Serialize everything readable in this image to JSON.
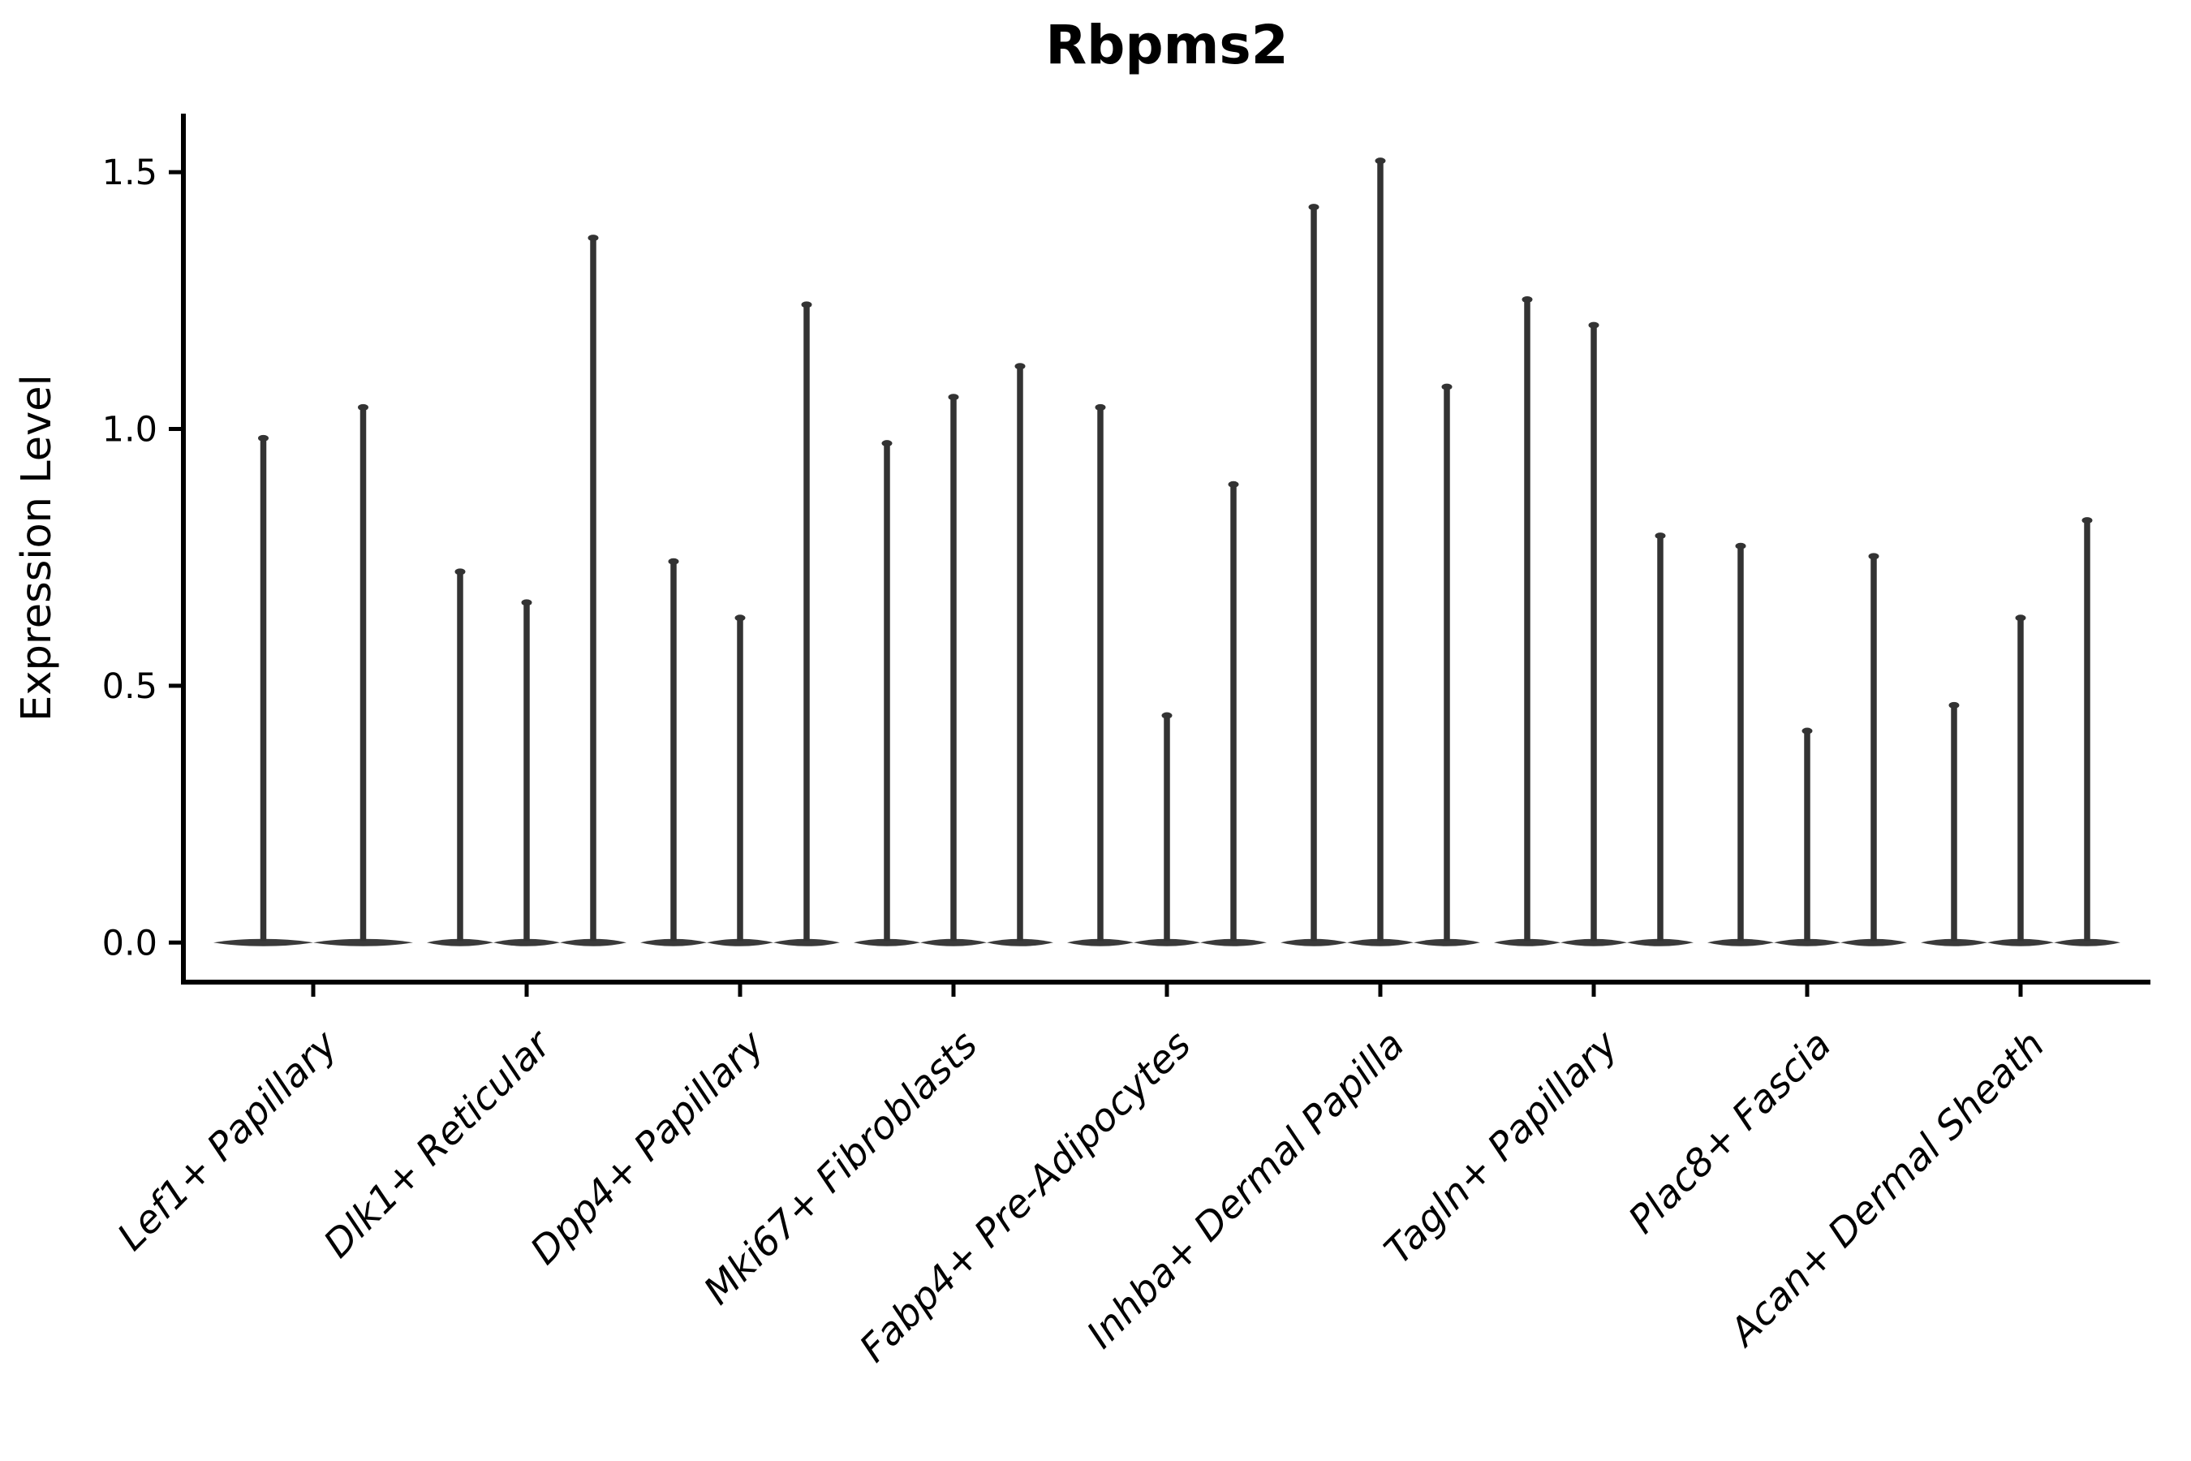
{
  "chart_data": {
    "type": "violin",
    "title": "Rbpms2",
    "xlabel": "",
    "ylabel": "Expression Level",
    "ylim": [
      -0.077,
      1.614
    ],
    "grid": false,
    "legend": null,
    "yticks": [
      {
        "value": 0.0,
        "label": "0.0"
      },
      {
        "value": 0.5,
        "label": "0.5"
      },
      {
        "value": 1.0,
        "label": "1.0"
      },
      {
        "value": 1.5,
        "label": "1.5"
      }
    ],
    "categories": [
      "Lef1+ Papillary",
      "Dlk1+ Reticular",
      "Dpp4+ Papillary",
      "Mki67+ Fibroblasts",
      "Fabp4+ Pre-Adipocytes",
      "Inhba+ Dermal Papilla",
      "Tagln+ Papillary",
      "Plac8+ Fascia",
      "Acan+ Dermal Sheath"
    ],
    "groups": [
      {
        "category": "Lef1+ Papillary",
        "violin_maxima": [
          0.99,
          1.05
        ]
      },
      {
        "category": "Dlk1+ Reticular",
        "violin_maxima": [
          0.73,
          0.67,
          1.38
        ]
      },
      {
        "category": "Dpp4+ Papillary",
        "violin_maxima": [
          0.75,
          0.64,
          1.25
        ]
      },
      {
        "category": "Mki67+ Fibroblasts",
        "violin_maxima": [
          0.98,
          1.07,
          1.13
        ]
      },
      {
        "category": "Fabp4+ Pre-Adipocytes",
        "violin_maxima": [
          1.05,
          0.45,
          0.9
        ]
      },
      {
        "category": "Inhba+ Dermal Papilla",
        "violin_maxima": [
          1.44,
          1.53,
          1.09
        ]
      },
      {
        "category": "Tagln+ Papillary",
        "violin_maxima": [
          1.26,
          1.21,
          0.8
        ]
      },
      {
        "category": "Plac8+ Fascia",
        "violin_maxima": [
          0.78,
          0.42,
          0.76
        ]
      },
      {
        "category": "Acan+ Dermal Sheath",
        "violin_maxima": [
          0.47,
          0.64,
          0.83
        ]
      }
    ],
    "violin_shape_note": "Each violin's density mass sits flat at 0 expression with a thin vertical tail rising to its maximum value",
    "colors": {
      "background": "#ffffff",
      "violin_fill": "#3a3a3a",
      "spike_stroke": "#333333",
      "axis": "#000000",
      "text": "#000000"
    }
  }
}
